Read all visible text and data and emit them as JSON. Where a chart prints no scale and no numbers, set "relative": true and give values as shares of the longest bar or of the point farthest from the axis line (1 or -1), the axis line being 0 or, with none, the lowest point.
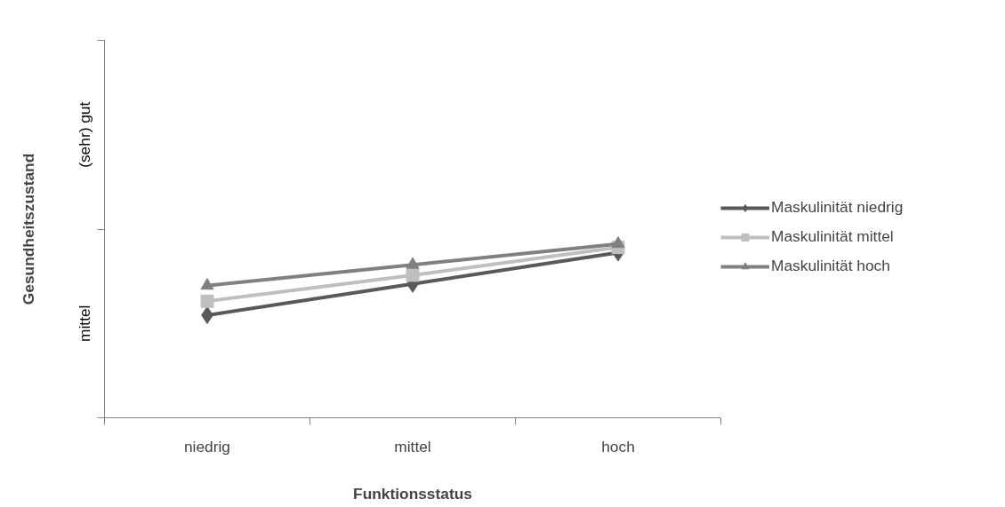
{
  "chart_data": {
    "type": "line",
    "relative": true,
    "xlabel": "Funktionsstatus",
    "ylabel": "Gesundheitszustand",
    "categories": [
      "niedrig",
      "mittel",
      "hoch"
    ],
    "series": [
      {
        "name": "Maskulinität niedrig",
        "color": "#595959",
        "marker": "diamond",
        "values": [
          0.59,
          0.77,
          0.95
        ]
      },
      {
        "name": "Maskulinität mittel",
        "color": "#bfbfbf",
        "marker": "square",
        "values": [
          0.67,
          0.82,
          0.98
        ]
      },
      {
        "name": "Maskulinität hoch",
        "color": "#808080",
        "marker": "triangle",
        "values": [
          0.76,
          0.88,
          1.0
        ]
      }
    ],
    "annotations": [
      "mittel",
      "(sehr) gut"
    ],
    "grid": false,
    "legend": "right"
  }
}
